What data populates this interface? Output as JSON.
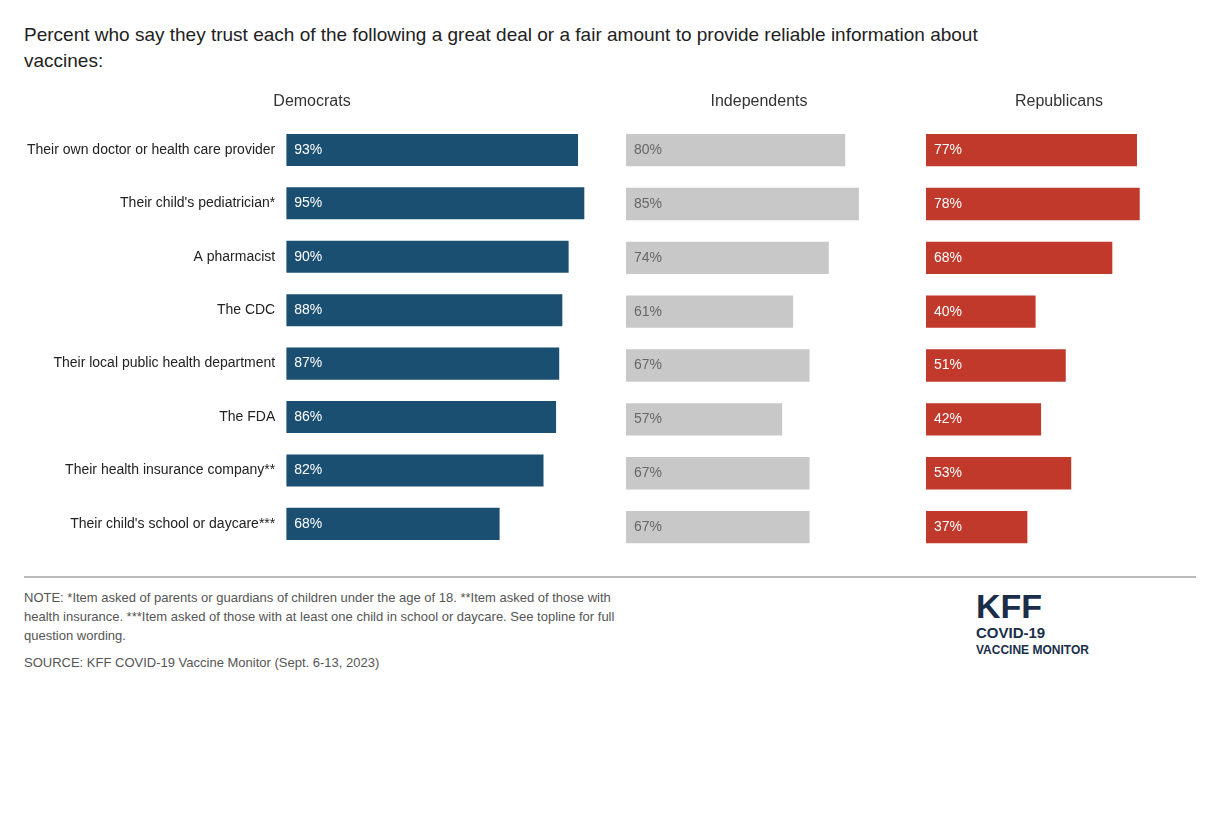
{
  "title": "Percent who say they trust each of the following a great deal or a fair amount to provide reliable information about vaccines:",
  "annotations": [
    "NOTE: *Item asked of parents or guardians of children under the age of 18. **Item asked of those with",
    "health insurance. ***Item asked of those with at least one child in school or daycare. See topline for full",
    "question wording.",
    "SOURCE: KFF COVID-19 Vaccine Monitor (Sept. 6-13, 2023)",
    "KFF",
    "COVID-19",
    "VACCINE MONITOR"
  ],
  "chart_data": [
    {
      "type": "bar",
      "title": "Democrats",
      "orientation": "horizontal",
      "categories": [
        "Their own doctor or health care provider",
        "Their child's pediatrician*",
        "A pharmacist",
        "The CDC",
        "Their local public health department",
        "The FDA",
        "Their health insurance company**",
        "Their child's school or daycare***"
      ],
      "values": [
        93,
        95,
        90,
        88,
        87,
        86,
        82,
        68
      ],
      "value_labels": [
        "93%",
        "95%",
        "90%",
        "88%",
        "87%",
        "86%",
        "82%",
        "68%"
      ],
      "color": "#1B4F72",
      "xlim": [
        0,
        100
      ],
      "xticks": [
        0,
        100
      ],
      "grid": false,
      "data_labels": true,
      "tick_labels": "y"
    },
    {
      "type": "bar",
      "title": "Independents",
      "orientation": "horizontal",
      "categories": [
        "Their own doctor or health care provider",
        "Their child's pediatrician*",
        "A pharmacist",
        "The CDC",
        "Their local public health department",
        "The FDA",
        "Their health insurance company**",
        "Their child's school or daycare***"
      ],
      "values": [
        80,
        85,
        74,
        61,
        67,
        57,
        67,
        67
      ],
      "value_labels": [
        "80%",
        "85%",
        "74%",
        "61%",
        "67%",
        "57%",
        "67%",
        "67%"
      ],
      "color": "#C8C8C8",
      "xlim": [
        0,
        100
      ],
      "xticks": [
        0,
        100
      ],
      "grid": false,
      "data_labels": true,
      "tick_labels": false
    },
    {
      "type": "bar",
      "title": "Republicans",
      "orientation": "horizontal",
      "categories": [
        "Their own doctor or health care provider",
        "Their child's pediatrician*",
        "A pharmacist",
        "The CDC",
        "Their local public health department",
        "The FDA",
        "Their health insurance company**",
        "Their child's school or daycare***"
      ],
      "values": [
        77,
        78,
        68,
        40,
        51,
        42,
        53,
        37
      ],
      "value_labels": [
        "77%",
        "78%",
        "68%",
        "40%",
        "51%",
        "42%",
        "53%",
        "37%"
      ],
      "color": "#C0392B",
      "xlim": [
        0,
        100
      ],
      "xticks": [
        0,
        100
      ],
      "grid": false,
      "data_labels": true,
      "tick_labels": false
    }
  ]
}
